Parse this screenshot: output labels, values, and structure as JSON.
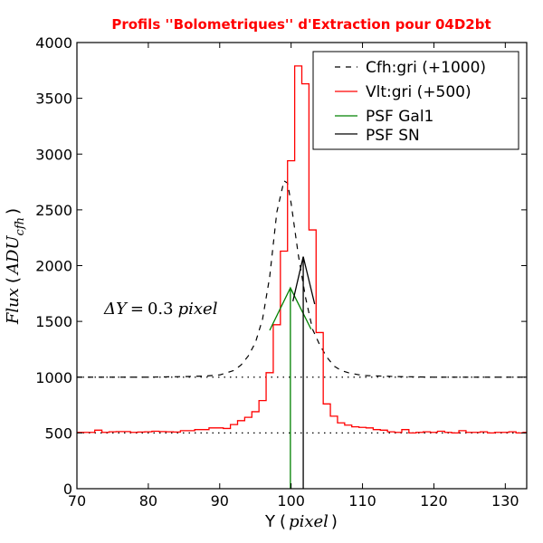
{
  "chart_data": {
    "type": "line",
    "title": "Profils ''Bolometriques'' d'Extraction pour 04D2bt",
    "xlabel": {
      "prefix": "Y",
      "lparen": "(",
      "var": "pixel",
      "rparen": ")"
    },
    "ylabel": {
      "prefix": "Flux",
      "lparen": "(",
      "var": "ADU",
      "sub": "cfh",
      "rparen": ")"
    },
    "xlim": [
      70,
      133
    ],
    "ylim": [
      0,
      4000
    ],
    "xticks": [
      "70",
      "80",
      "90",
      "100",
      "110",
      "120",
      "130"
    ],
    "yticks": [
      "0",
      "500",
      "1000",
      "1500",
      "2000",
      "2500",
      "3000",
      "3500",
      "4000"
    ],
    "annotation": {
      "text": "ΔY = 0.3 pixel",
      "lhs": "ΔY",
      "eq": "=",
      "num": "0.3",
      "unit": "pixel"
    },
    "reference_lines": [
      1000,
      500
    ],
    "legend_placement": "top-right",
    "colors": {
      "cfh": "#000000",
      "vlt": "#ff0000",
      "gal": "#008000",
      "sn": "#000000",
      "title": "#ff0000"
    },
    "series": [
      {
        "name": "Cfh:gri (+1000)",
        "style": "dashed",
        "x": [
          70,
          75,
          80,
          85,
          88,
          90,
          92,
          93,
          94,
          95,
          96,
          97,
          98,
          99,
          99.5,
          100,
          101,
          102,
          103,
          104,
          105,
          106,
          107,
          108,
          110,
          115,
          120,
          125,
          130,
          133
        ],
        "y": [
          1000,
          1000,
          1000,
          1005,
          1010,
          1020,
          1060,
          1110,
          1190,
          1310,
          1520,
          1900,
          2480,
          2760,
          2740,
          2560,
          2100,
          1720,
          1430,
          1290,
          1180,
          1100,
          1060,
          1040,
          1015,
          1005,
          1000,
          1000,
          1000,
          1000
        ]
      },
      {
        "name": "Vlt:gri (+500)",
        "style": "steps",
        "x": [
          70,
          71,
          72,
          73,
          74,
          75,
          76,
          77,
          78,
          79,
          80,
          81,
          82,
          83,
          84,
          85,
          86,
          87,
          88,
          89,
          90,
          91,
          92,
          93,
          94,
          95,
          96,
          97,
          98,
          99,
          100,
          101,
          102,
          103,
          104,
          105,
          106,
          107,
          108,
          109,
          110,
          111,
          112,
          113,
          114,
          115,
          116,
          117,
          118,
          119,
          120,
          121,
          122,
          123,
          124,
          125,
          126,
          127,
          128,
          129,
          130,
          131,
          132,
          133
        ],
        "y": [
          505,
          505,
          505,
          525,
          505,
          510,
          512,
          512,
          505,
          508,
          510,
          515,
          512,
          510,
          508,
          520,
          520,
          530,
          530,
          545,
          545,
          540,
          575,
          610,
          640,
          690,
          790,
          1040,
          1470,
          2130,
          2940,
          3790,
          3630,
          2320,
          1400,
          760,
          650,
          590,
          570,
          555,
          550,
          545,
          530,
          525,
          510,
          505,
          530,
          500,
          505,
          510,
          505,
          515,
          505,
          500,
          520,
          505,
          505,
          510,
          500,
          505,
          505,
          510,
          500,
          505
        ]
      },
      {
        "name": "PSF Gal1",
        "style": "solid",
        "x": [
          97.0,
          99.9,
          102.8
        ],
        "y": [
          1420,
          1800,
          1430
        ],
        "center": 99.9
      },
      {
        "name": "PSF SN",
        "style": "solid",
        "x": [
          100.25,
          101.7,
          103.3
        ],
        "y": [
          1680,
          2080,
          1655
        ],
        "center": 101.7
      }
    ]
  }
}
